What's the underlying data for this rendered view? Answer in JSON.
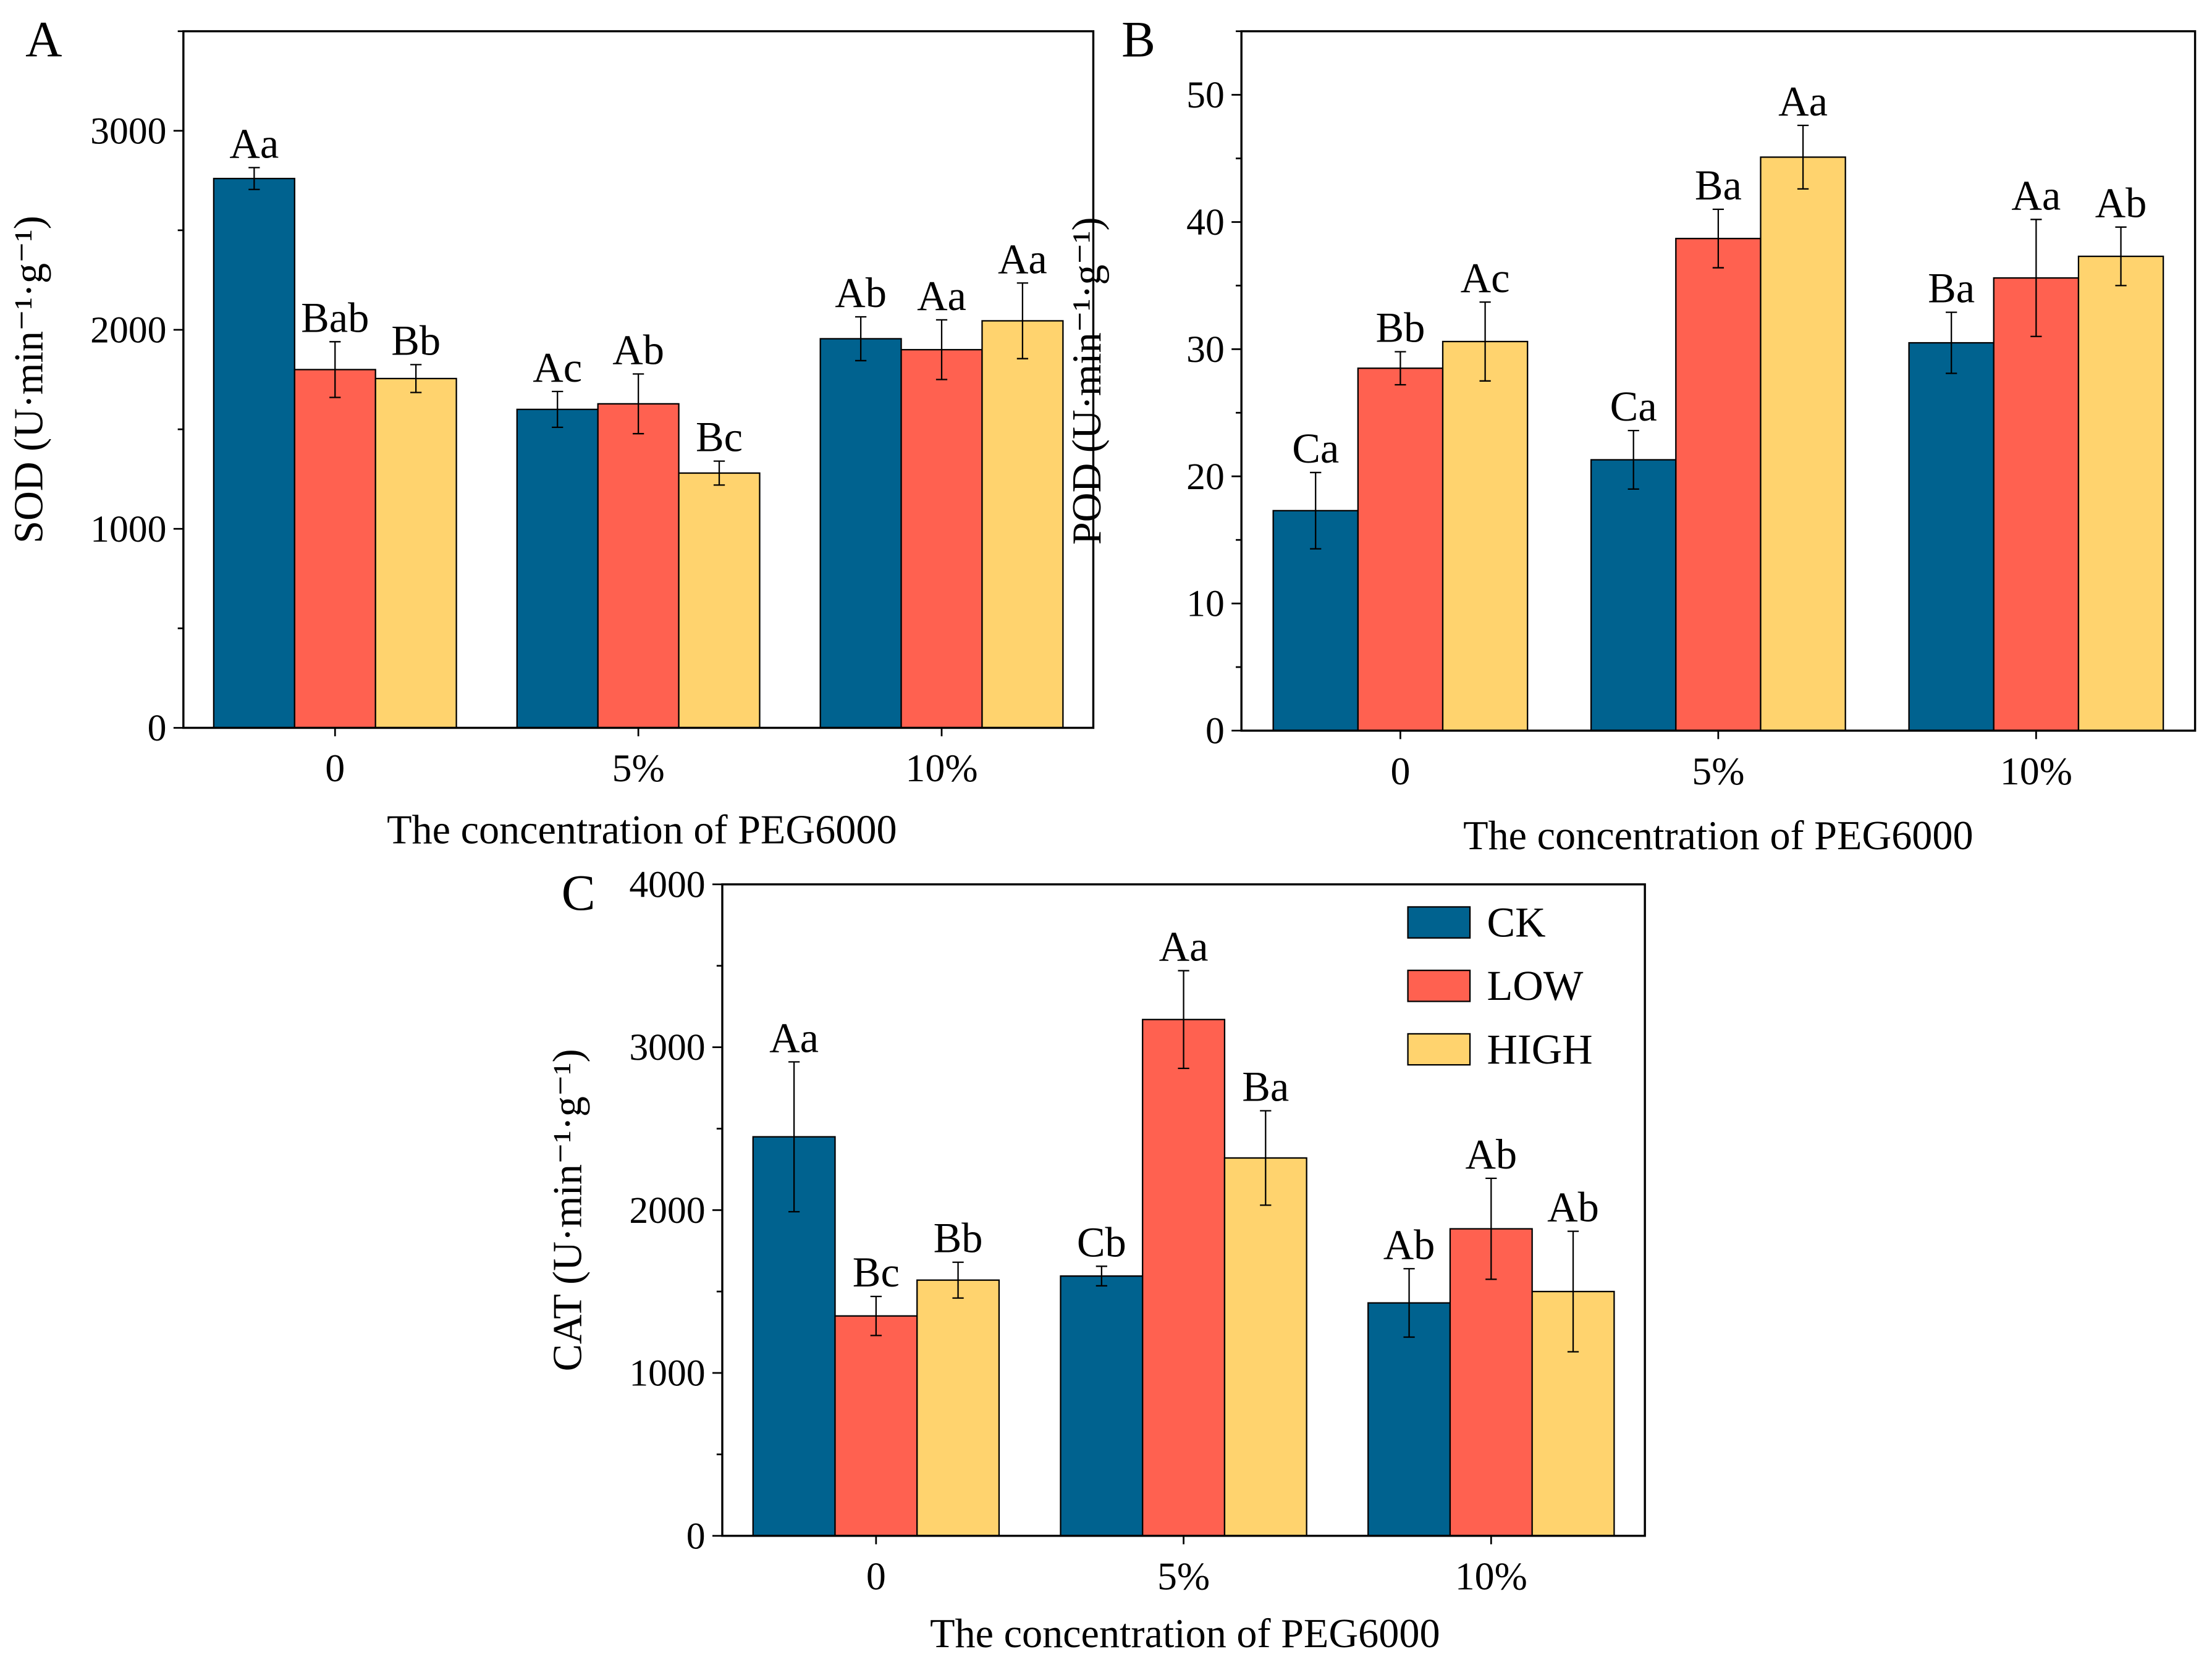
{
  "colors": {
    "CK": "#00628f",
    "LOW": "#ff6150",
    "HIGH": "#ffd36e"
  },
  "chart_data": [
    {
      "type": "bar",
      "panel_label": "A",
      "xlabel": "The concentration of PEG6000",
      "ylabel": "SOD (U·min⁻¹·g⁻¹)",
      "categories": [
        "0",
        "5%",
        "10%"
      ],
      "ylim": [
        0,
        3500
      ],
      "yticks": [
        0,
        1000,
        2000,
        3000
      ],
      "series": [
        {
          "name": "CK",
          "values": [
            2760,
            1600,
            1955
          ],
          "errors": [
            55,
            90,
            110
          ],
          "letters": [
            "Aa",
            "Ac",
            "Ab"
          ]
        },
        {
          "name": "LOW",
          "values": [
            1800,
            1628,
            1900
          ],
          "errors": [
            140,
            150,
            150
          ],
          "letters": [
            "Bab",
            "Ab",
            "Aa"
          ]
        },
        {
          "name": "HIGH",
          "values": [
            1755,
            1280,
            2045
          ],
          "errors": [
            70,
            60,
            190
          ],
          "letters": [
            "Bb",
            "Bc",
            "Aa"
          ]
        }
      ]
    },
    {
      "type": "bar",
      "panel_label": "B",
      "xlabel": "The concentration of PEG6000",
      "ylabel": "POD (U·min⁻¹·g⁻¹)",
      "categories": [
        "0",
        "5%",
        "10%"
      ],
      "ylim": [
        0,
        55
      ],
      "yticks": [
        0,
        10,
        20,
        30,
        40,
        50
      ],
      "series": [
        {
          "name": "CK",
          "values": [
            17.3,
            21.3,
            30.5
          ],
          "errors": [
            3.0,
            2.3,
            2.4
          ],
          "letters": [
            "Ca",
            "Ca",
            "Ba"
          ]
        },
        {
          "name": "LOW",
          "values": [
            28.5,
            38.7,
            35.6
          ],
          "errors": [
            1.3,
            2.3,
            4.6
          ],
          "letters": [
            "Bb",
            "Ba",
            "Aa"
          ]
        },
        {
          "name": "HIGH",
          "values": [
            30.6,
            45.1,
            37.3
          ],
          "errors": [
            3.1,
            2.5,
            2.3
          ],
          "letters": [
            "Ac",
            "Aa",
            "Ab"
          ]
        }
      ]
    },
    {
      "type": "bar",
      "panel_label": "C",
      "xlabel": "The concentration of PEG6000",
      "ylabel": "CAT (U·min⁻¹·g⁻¹)",
      "categories": [
        "0",
        "5%",
        "10%"
      ],
      "ylim": [
        0,
        4000
      ],
      "yticks": [
        0,
        1000,
        2000,
        3000,
        4000
      ],
      "legend": {
        "position": "top-right",
        "entries": [
          "CK",
          "LOW",
          "HIGH"
        ]
      },
      "series": [
        {
          "name": "CK",
          "values": [
            2450,
            1595,
            1430
          ],
          "errors": [
            460,
            60,
            210
          ],
          "letters": [
            "Aa",
            "Cb",
            "Ab"
          ]
        },
        {
          "name": "LOW",
          "values": [
            1350,
            3170,
            1885
          ],
          "errors": [
            120,
            300,
            310
          ],
          "letters": [
            "Bc",
            "Aa",
            "Ab"
          ]
        },
        {
          "name": "HIGH",
          "values": [
            1570,
            2320,
            1500
          ],
          "errors": [
            110,
            290,
            370
          ],
          "letters": [
            "Bb",
            "Ba",
            "Ab"
          ]
        }
      ]
    }
  ]
}
